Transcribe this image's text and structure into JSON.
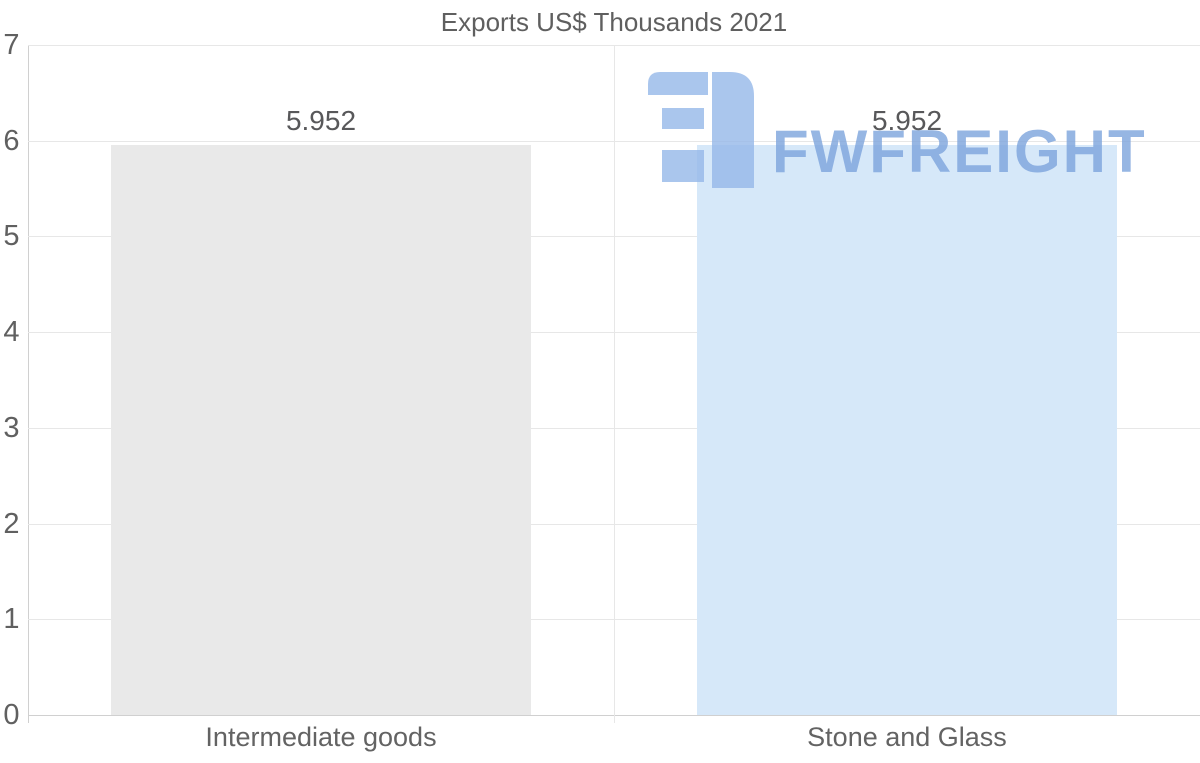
{
  "chart_data": {
    "type": "bar",
    "title": "Exports US$ Thousands 2021",
    "categories": [
      "Intermediate goods",
      "Stone and Glass"
    ],
    "values": [
      5.952,
      5.952
    ],
    "value_labels": [
      "5.952",
      "5.952"
    ],
    "bar_colors": [
      "#e9e9e9",
      "#d6e8f9"
    ],
    "xlabel": "",
    "ylabel": "",
    "ylim": [
      0,
      7
    ],
    "yticks": [
      "0",
      "1",
      "2",
      "3",
      "4",
      "5",
      "6",
      "7"
    ],
    "grid": true,
    "legend": false
  },
  "watermark": {
    "text": "FWFREIGHT",
    "text_color": "#7da4dd",
    "icon_color": "#96b8e9"
  }
}
